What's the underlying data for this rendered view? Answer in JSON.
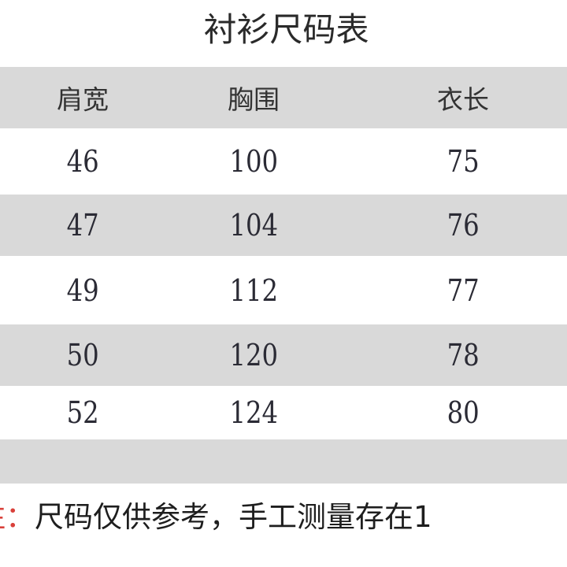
{
  "title": "衬衫尺码表",
  "columns": [
    "肩宽",
    "胸围",
    "衣长"
  ],
  "rows": [
    [
      "46",
      "100",
      "75"
    ],
    [
      "47",
      "104",
      "76"
    ],
    [
      "49",
      "112",
      "77"
    ],
    [
      "50",
      "120",
      "78"
    ],
    [
      "52",
      "124",
      "80"
    ]
  ],
  "note": {
    "label": "注：",
    "text": "尺码仅供参考，手工测量存在1"
  },
  "colors": {
    "band_gray": "#d9d9d9",
    "note_label": "#d9403a"
  }
}
